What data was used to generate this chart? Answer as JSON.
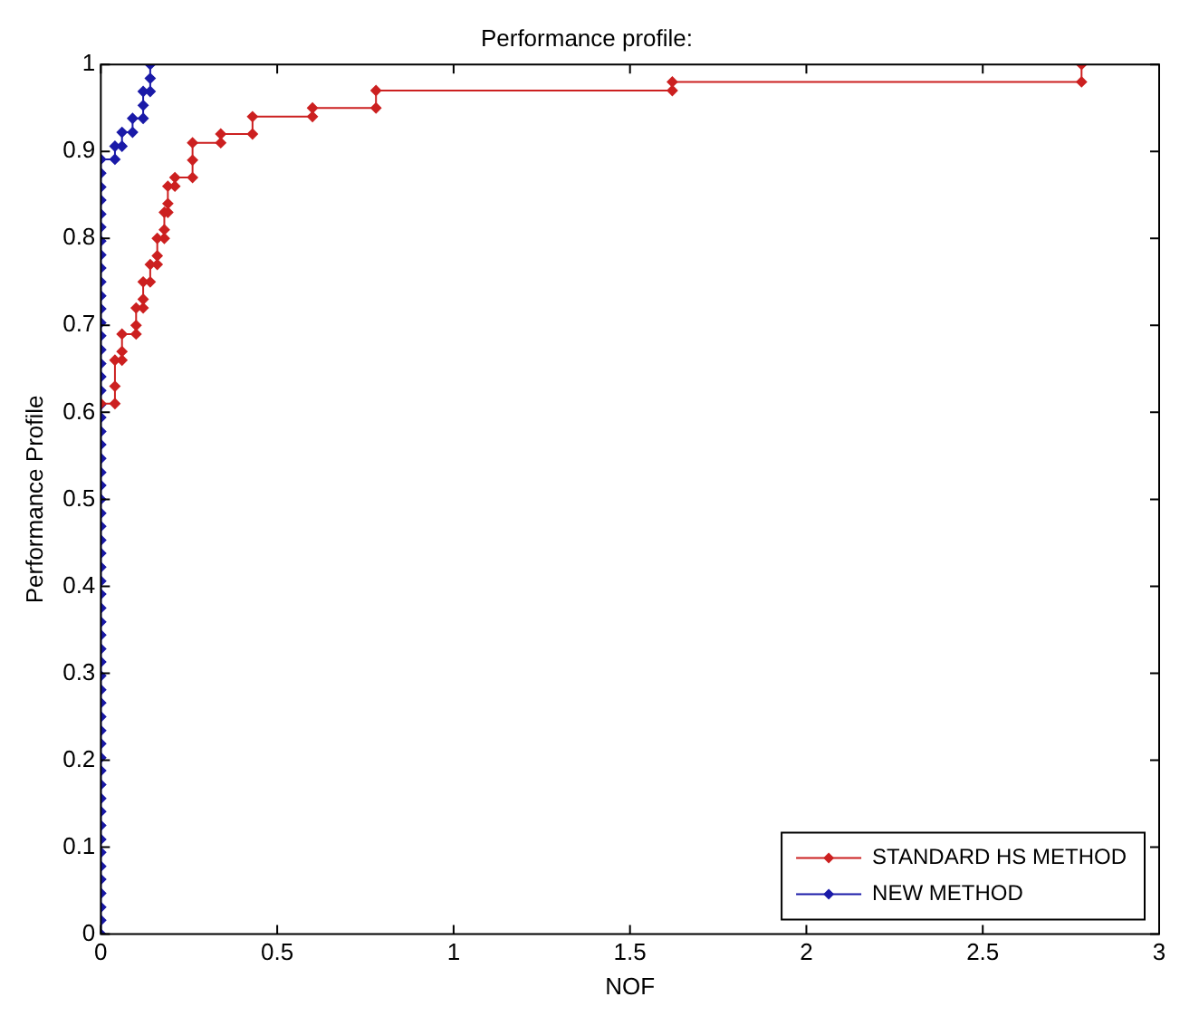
{
  "chart_data": {
    "type": "line",
    "title": "Performance profile:",
    "xlabel": "NOF",
    "ylabel": "Performance Profile",
    "xlim": [
      0,
      3
    ],
    "xticks": [
      0,
      0.5,
      1,
      1.5,
      2,
      2.5,
      3
    ],
    "ylim": [
      0,
      1
    ],
    "yticks": [
      0,
      0.1,
      0.2,
      0.3,
      0.4,
      0.5,
      0.6,
      0.7,
      0.8,
      0.9,
      1
    ],
    "grid": false,
    "legend": "bottom right",
    "marker": "diamond",
    "line_style": "solid",
    "series": [
      {
        "name": "STANDARD HS METHOD",
        "color": "#cc2020",
        "x": [
          0,
          0.04,
          0.04,
          0.04,
          0.06,
          0.06,
          0.06,
          0.1,
          0.1,
          0.1,
          0.12,
          0.12,
          0.12,
          0.14,
          0.14,
          0.16,
          0.16,
          0.16,
          0.18,
          0.18,
          0.18,
          0.19,
          0.19,
          0.19,
          0.21,
          0.21,
          0.26,
          0.26,
          0.26,
          0.34,
          0.34,
          0.43,
          0.43,
          0.6,
          0.6,
          0.78,
          0.78,
          1.62,
          1.62,
          2.78,
          2.78
        ],
        "values": [
          0.61,
          0.61,
          0.63,
          0.66,
          0.66,
          0.67,
          0.69,
          0.69,
          0.7,
          0.72,
          0.72,
          0.73,
          0.75,
          0.75,
          0.77,
          0.77,
          0.78,
          0.8,
          0.8,
          0.81,
          0.83,
          0.83,
          0.84,
          0.86,
          0.86,
          0.87,
          0.87,
          0.89,
          0.91,
          0.91,
          0.92,
          0.92,
          0.94,
          0.94,
          0.95,
          0.95,
          0.97,
          0.97,
          0.98,
          0.98,
          1.0
        ]
      },
      {
        "name": "NEW METHOD",
        "color": "#1a1aa8",
        "x": [
          0,
          0,
          0,
          0,
          0,
          0,
          0,
          0,
          0,
          0,
          0,
          0,
          0,
          0,
          0,
          0,
          0,
          0,
          0,
          0,
          0,
          0,
          0,
          0,
          0,
          0,
          0,
          0,
          0,
          0,
          0,
          0,
          0,
          0,
          0,
          0,
          0,
          0,
          0,
          0,
          0,
          0,
          0,
          0,
          0,
          0,
          0,
          0,
          0,
          0,
          0,
          0,
          0,
          0,
          0,
          0,
          0,
          0,
          0.04,
          0.04,
          0.06,
          0.06,
          0.09,
          0.09,
          0.12,
          0.12,
          0.12,
          0.14,
          0.14,
          0.14
        ],
        "values": [
          0,
          0.016,
          0.031,
          0.047,
          0.063,
          0.078,
          0.094,
          0.109,
          0.125,
          0.141,
          0.156,
          0.172,
          0.188,
          0.203,
          0.219,
          0.234,
          0.25,
          0.266,
          0.281,
          0.297,
          0.313,
          0.328,
          0.344,
          0.359,
          0.375,
          0.391,
          0.406,
          0.422,
          0.438,
          0.453,
          0.469,
          0.484,
          0.5,
          0.516,
          0.531,
          0.547,
          0.563,
          0.578,
          0.594,
          0.609,
          0.625,
          0.641,
          0.656,
          0.672,
          0.688,
          0.703,
          0.719,
          0.734,
          0.75,
          0.766,
          0.781,
          0.797,
          0.813,
          0.828,
          0.844,
          0.859,
          0.875,
          0.891,
          0.891,
          0.906,
          0.906,
          0.922,
          0.922,
          0.938,
          0.938,
          0.953,
          0.969,
          0.969,
          0.984,
          1.0
        ]
      }
    ]
  }
}
